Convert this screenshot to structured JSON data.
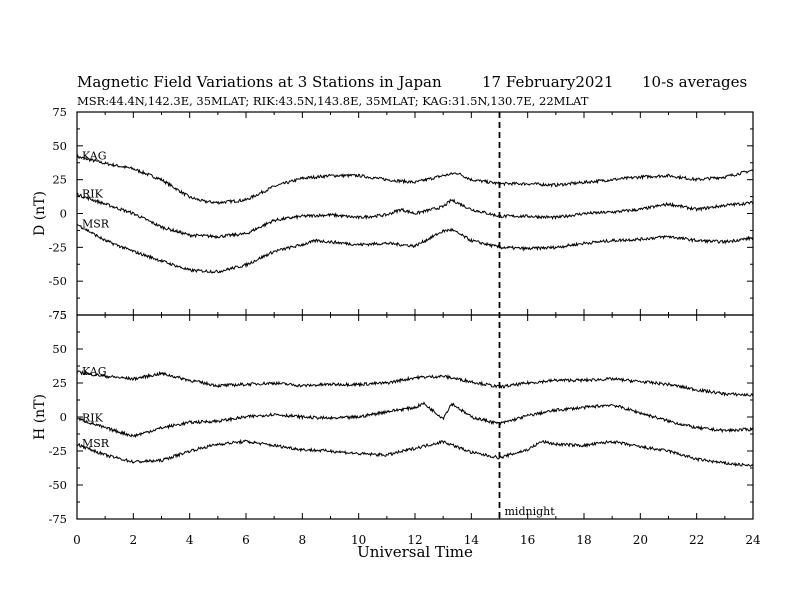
{
  "header": {
    "title": "Magnetic Field Variations at 3 Stations in Japan",
    "date": "17 February2021",
    "averaging": "10-s averages",
    "stations": "MSR:44.4N,142.3E, 35MLAT;  RIK:43.5N,143.8E, 35MLAT;  KAG:31.5N,130.7E, 22MLAT"
  },
  "chart_data": {
    "type": "line",
    "x": {
      "label": "Universal Time",
      "range": [
        0,
        24
      ],
      "ticks": [
        "0",
        "2",
        "4",
        "6",
        "8",
        "10",
        "12",
        "14",
        "16",
        "18",
        "20",
        "22",
        "24"
      ]
    },
    "marker": {
      "x": 15,
      "label": "midnight",
      "style": "dashed"
    },
    "panels": [
      {
        "id": "D",
        "ylabel": "D (nT)",
        "ylim": [
          -75,
          75
        ],
        "yticks": [
          "75",
          "50",
          "25",
          "0",
          "-25",
          "-50",
          "-75"
        ],
        "series": [
          {
            "name": "KAG",
            "x": [
              0,
              1,
              2,
              3,
              4,
              4.5,
              5,
              6,
              7,
              8,
              9,
              10,
              11,
              12,
              13,
              13.5,
              14,
              15,
              16,
              17,
              18,
              19,
              20,
              21,
              22,
              23,
              24
            ],
            "y": [
              42,
              37,
              33,
              25,
              12,
              9,
              8,
              10,
              20,
              26,
              28,
              28,
              25,
              23,
              28,
              30,
              25,
              22,
              22,
              21,
              23,
              25,
              27,
              28,
              25,
              27,
              32
            ]
          },
          {
            "name": "RIK",
            "x": [
              0,
              1,
              2,
              3,
              4,
              5,
              6,
              7,
              8,
              9,
              10,
              11,
              11.5,
              12,
              13,
              13.3,
              14,
              15,
              16,
              17,
              18,
              19,
              20,
              21,
              22,
              23,
              24
            ],
            "y": [
              14,
              7,
              0,
              -10,
              -16,
              -17,
              -15,
              -5,
              -2,
              -1,
              -3,
              -1,
              3,
              0,
              5,
              10,
              3,
              -2,
              -2,
              -3,
              0,
              1,
              3,
              7,
              3,
              6,
              8
            ]
          },
          {
            "name": "MSR",
            "x": [
              0,
              1,
              2,
              3,
              4,
              5,
              6,
              7,
              8,
              8.5,
              9,
              10,
              11,
              12,
              13,
              13.3,
              14,
              15,
              16,
              17,
              18,
              19,
              20,
              21,
              22,
              23,
              24
            ],
            "y": [
              -8,
              -20,
              -28,
              -35,
              -42,
              -43,
              -38,
              -28,
              -23,
              -20,
              -21,
              -23,
              -22,
              -24,
              -13,
              -12,
              -20,
              -25,
              -26,
              -25,
              -22,
              -20,
              -19,
              -17,
              -20,
              -21,
              -18
            ]
          }
        ]
      },
      {
        "id": "H",
        "ylabel": "H (nT)",
        "ylim": [
          -75,
          75
        ],
        "yticks": [
          "75",
          "50",
          "25",
          "0",
          "-25",
          "-50",
          "-75"
        ],
        "series": [
          {
            "name": "KAG",
            "x": [
              0,
              1,
              2,
              3,
              4,
              5,
              6,
              7,
              8,
              9,
              10,
              11,
              12,
              13,
              14,
              15,
              16,
              17,
              18,
              19,
              20,
              21,
              22,
              23,
              24
            ],
            "y": [
              33,
              30,
              28,
              32,
              27,
              23,
              24,
              25,
              23,
              24,
              24,
              25,
              29,
              30,
              26,
              22,
              25,
              27,
              27,
              28,
              26,
              24,
              20,
              17,
              16
            ]
          },
          {
            "name": "RIK",
            "x": [
              0,
              1,
              2,
              3,
              4,
              5,
              6,
              7,
              8,
              9,
              10,
              11,
              12,
              12.3,
              13,
              13.3,
              14,
              15,
              16,
              17,
              18,
              19,
              20,
              21,
              22,
              23,
              24
            ],
            "y": [
              -1,
              -8,
              -14,
              -8,
              -4,
              -3,
              0,
              2,
              0,
              -1,
              0,
              4,
              7,
              10,
              -1,
              10,
              0,
              -5,
              1,
              5,
              7,
              9,
              3,
              -3,
              -8,
              -10,
              -9
            ]
          },
          {
            "name": "MSR",
            "x": [
              0,
              1,
              2,
              3,
              4,
              5,
              6,
              7,
              8,
              9,
              10,
              11,
              12,
              13,
              13.5,
              14,
              15,
              16,
              16.5,
              17,
              18,
              19,
              20,
              21,
              22,
              23,
              24
            ],
            "y": [
              -20,
              -28,
              -33,
              -32,
              -25,
              -20,
              -18,
              -21,
              -24,
              -25,
              -27,
              -28,
              -23,
              -18,
              -22,
              -26,
              -30,
              -24,
              -18,
              -20,
              -21,
              -18,
              -22,
              -25,
              -31,
              -34,
              -36
            ]
          }
        ]
      }
    ]
  }
}
